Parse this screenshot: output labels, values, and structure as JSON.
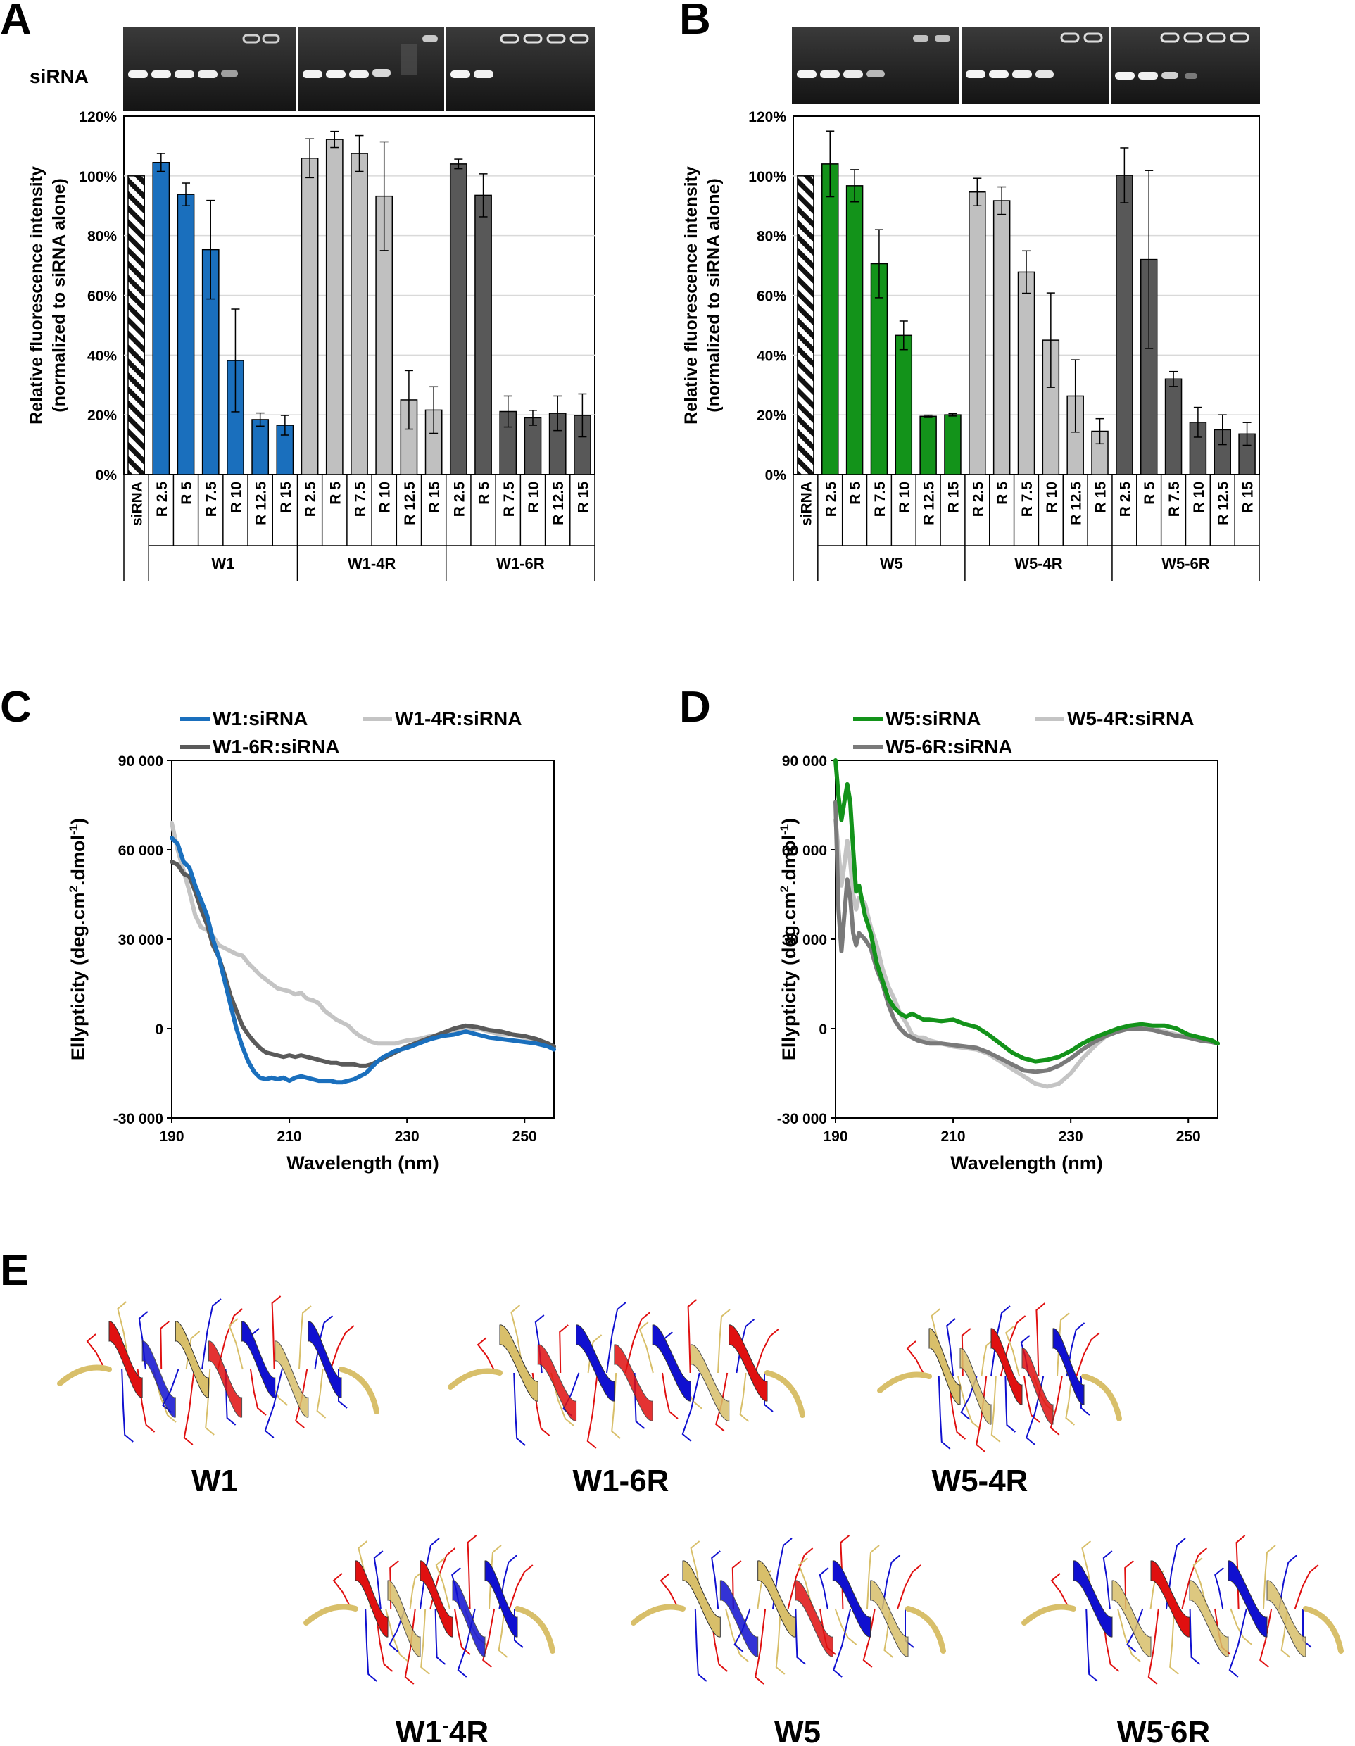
{
  "panels": {
    "A": {
      "letter": "A"
    },
    "B": {
      "letter": "B"
    },
    "C": {
      "letter": "C"
    },
    "D": {
      "letter": "D"
    },
    "E": {
      "letter": "E"
    }
  },
  "colors": {
    "blue": "#1a6fbd",
    "green": "#13931a",
    "light_grey": "#bdbdbd",
    "dark_grey": "#565656",
    "mid_grey": "#767676",
    "helix_red": "#e01010",
    "helix_blue": "#1010d0",
    "helix_yellow": "#d8bf6a"
  },
  "gel": {
    "label": "siRNA"
  },
  "chart_data": [
    {
      "panel": "A",
      "type": "bar",
      "title": "",
      "ylabel_lines": [
        "Relative fluorescence intensity",
        "(normalized to siRNA alone)"
      ],
      "xlabel": "",
      "ylim": [
        0,
        120
      ],
      "yticks": [
        0,
        20,
        40,
        60,
        80,
        100,
        120
      ],
      "ytick_labels": [
        "0%",
        "20%",
        "40%",
        "60%",
        "80%",
        "100%",
        "120%"
      ],
      "control": {
        "label": "siRNA",
        "value": 100,
        "error": 0
      },
      "categories": [
        "R 2.5",
        "R 5",
        "R 7.5",
        "R 10",
        "R 12.5",
        "R 15"
      ],
      "series": [
        {
          "name": "W1",
          "color": "#1a6fbd",
          "values": [
            104.5,
            93.8,
            75.3,
            38.2,
            18.4,
            16.5
          ],
          "errors": [
            3.0,
            3.8,
            16.5,
            17.2,
            2.2,
            3.3
          ]
        },
        {
          "name": "W1-4R",
          "color": "#c0c0c0",
          "values": [
            105.9,
            112.2,
            107.5,
            93.2,
            25.0,
            21.6
          ],
          "errors": [
            6.5,
            2.7,
            6.0,
            18.2,
            9.8,
            7.8
          ]
        },
        {
          "name": "W1-6R",
          "color": "#585858",
          "values": [
            104.0,
            93.5,
            21.1,
            19.0,
            20.5,
            19.8
          ],
          "errors": [
            1.6,
            7.2,
            5.2,
            2.5,
            5.8,
            7.2
          ]
        }
      ]
    },
    {
      "panel": "B",
      "type": "bar",
      "title": "",
      "ylabel_lines": [
        "Relative fluorescence intensity",
        "(normalized to siRNA alone)"
      ],
      "xlabel": "",
      "ylim": [
        0,
        120
      ],
      "yticks": [
        0,
        20,
        40,
        60,
        80,
        100,
        120
      ],
      "ytick_labels": [
        "0%",
        "20%",
        "40%",
        "60%",
        "80%",
        "100%",
        "120%"
      ],
      "control": {
        "label": "siRNA",
        "value": 100,
        "error": 0
      },
      "categories": [
        "R 2.5",
        "R 5",
        "R 7.5",
        "R 10",
        "R 12.5",
        "R 15"
      ],
      "series": [
        {
          "name": "W5",
          "color": "#13931a",
          "values": [
            104.0,
            96.7,
            70.6,
            46.6,
            19.5,
            20.0
          ],
          "errors": [
            11.0,
            5.4,
            11.4,
            4.8,
            0.4,
            0.4
          ]
        },
        {
          "name": "W5-4R",
          "color": "#c0c0c0",
          "values": [
            94.6,
            91.7,
            67.8,
            45.0,
            26.3,
            14.5
          ],
          "errors": [
            4.6,
            4.6,
            7.1,
            15.8,
            12.1,
            4.2
          ]
        },
        {
          "name": "W5-6R",
          "color": "#585858",
          "values": [
            100.2,
            72.0,
            32.0,
            17.5,
            15.0,
            13.6
          ],
          "errors": [
            9.2,
            29.8,
            2.5,
            5.0,
            5.0,
            3.8
          ]
        }
      ]
    },
    {
      "panel": "C",
      "type": "line",
      "title": "",
      "xlabel": "Wavelength (nm)",
      "ylabel": "Ellypticity (deg.cm",
      "ylabel_sup1": "2",
      "ylabel_mid": ".dmol",
      "ylabel_sup2": "-1",
      "ylabel_end": ")",
      "xlim": [
        190,
        255
      ],
      "ylim": [
        -30000,
        90000
      ],
      "xticks": [
        190,
        210,
        230,
        250
      ],
      "xtick_labels": [
        "190",
        "210",
        "230",
        "250"
      ],
      "yticks": [
        -30000,
        0,
        30000,
        60000,
        90000
      ],
      "ytick_labels": [
        "-30 000",
        "0",
        "30 000",
        "60 000",
        "90 000"
      ],
      "series": [
        {
          "name": "W1-4R:siRNA",
          "color": "#c4c4c4",
          "x": [
            190,
            191,
            192,
            193,
            194,
            195,
            196,
            197,
            198,
            199,
            200,
            201,
            202,
            203,
            204,
            205,
            206,
            207,
            208,
            209,
            210,
            211,
            212,
            213,
            214,
            215,
            216,
            217,
            218,
            219,
            220,
            221,
            222,
            223,
            224,
            225,
            226,
            227,
            228,
            229,
            230,
            232,
            234,
            236,
            238,
            240,
            242,
            244,
            246,
            248,
            250,
            252,
            254,
            255
          ],
          "y": [
            69000,
            60000,
            53000,
            46000,
            38000,
            34000,
            33000,
            31000,
            28000,
            27000,
            26000,
            25000,
            24500,
            22000,
            20000,
            18000,
            16500,
            15000,
            13500,
            13000,
            12500,
            11500,
            12000,
            10000,
            9500,
            8500,
            6000,
            4500,
            3000,
            2000,
            1000,
            -1000,
            -2500,
            -3500,
            -4500,
            -5000,
            -5000,
            -5000,
            -5000,
            -4500,
            -4000,
            -3500,
            -2500,
            -2000,
            -1000,
            0,
            0,
            -1000,
            -2000,
            -2000,
            -3000,
            -4000,
            -5000,
            -6000
          ]
        },
        {
          "name": "W1-6R:siRNA",
          "color": "#5a5a5a",
          "x": [
            190,
            191,
            192,
            193,
            194,
            195,
            196,
            197,
            198,
            199,
            200,
            201,
            202,
            203,
            204,
            205,
            206,
            207,
            208,
            209,
            210,
            211,
            212,
            213,
            214,
            215,
            216,
            217,
            218,
            219,
            220,
            221,
            222,
            223,
            224,
            225,
            226,
            227,
            228,
            229,
            230,
            232,
            234,
            236,
            238,
            240,
            242,
            244,
            246,
            248,
            250,
            252,
            254,
            255
          ],
          "y": [
            56000,
            55000,
            52000,
            51000,
            46000,
            40000,
            35000,
            28000,
            24000,
            18000,
            11000,
            6000,
            1000,
            -2000,
            -4500,
            -6500,
            -8000,
            -8500,
            -9000,
            -9500,
            -9000,
            -9500,
            -9000,
            -9500,
            -10000,
            -10500,
            -11000,
            -11500,
            -11500,
            -12000,
            -12000,
            -12000,
            -12500,
            -12500,
            -12000,
            -11000,
            -10000,
            -9000,
            -8000,
            -7000,
            -6000,
            -4500,
            -3000,
            -1500,
            0,
            1000,
            500,
            -500,
            -1000,
            -2000,
            -2500,
            -3500,
            -5000,
            -6000
          ]
        },
        {
          "name": "W1:siRNA",
          "color": "#1a6fbd",
          "x": [
            190,
            191,
            192,
            193,
            194,
            195,
            196,
            197,
            198,
            199,
            200,
            201,
            202,
            203,
            204,
            205,
            206,
            207,
            208,
            209,
            210,
            211,
            212,
            213,
            214,
            215,
            216,
            217,
            218,
            219,
            220,
            221,
            222,
            223,
            224,
            225,
            226,
            227,
            228,
            229,
            230,
            232,
            234,
            236,
            238,
            240,
            242,
            244,
            246,
            248,
            250,
            252,
            254,
            255
          ],
          "y": [
            64000,
            62000,
            56000,
            54000,
            48000,
            43000,
            38000,
            30000,
            24000,
            16000,
            8000,
            0,
            -6000,
            -11000,
            -14500,
            -16500,
            -17000,
            -16500,
            -17000,
            -16500,
            -17500,
            -16500,
            -16000,
            -16500,
            -17000,
            -17500,
            -17500,
            -17500,
            -18000,
            -18000,
            -17500,
            -17000,
            -16000,
            -15000,
            -13000,
            -11000,
            -9500,
            -8500,
            -7500,
            -7000,
            -6500,
            -5000,
            -3500,
            -2500,
            -2000,
            -1000,
            -2000,
            -3000,
            -3500,
            -4000,
            -4500,
            -5000,
            -6000,
            -7000
          ]
        }
      ],
      "legend": [
        "W1:siRNA",
        "W1-4R:siRNA",
        "W1-6R:siRNA"
      ]
    },
    {
      "panel": "D",
      "type": "line",
      "title": "",
      "xlabel": "Wavelength (nm)",
      "ylabel": "Ellypticity (deg.cm",
      "ylabel_sup1": "2",
      "ylabel_mid": ".dmol",
      "ylabel_sup2": "-1",
      "ylabel_end": ")",
      "xlim": [
        190,
        255
      ],
      "ylim": [
        -30000,
        90000
      ],
      "xticks": [
        190,
        210,
        230,
        250
      ],
      "xtick_labels": [
        "190",
        "210",
        "230",
        "250"
      ],
      "yticks": [
        -30000,
        0,
        30000,
        60000,
        90000
      ],
      "ytick_labels": [
        "-30 000",
        "0",
        "30 000",
        "60 000",
        "90 000"
      ],
      "series": [
        {
          "name": "W5-4R:siRNA",
          "color": "#c4c4c4",
          "x": [
            190,
            190.5,
            191,
            191.5,
            192,
            192.5,
            193,
            193.5,
            194,
            195,
            196,
            197,
            198,
            199,
            200,
            201,
            202,
            203,
            204,
            205,
            206,
            208,
            210,
            212,
            214,
            216,
            218,
            220,
            222,
            224,
            226,
            228,
            230,
            232,
            234,
            236,
            238,
            240,
            242,
            244,
            246,
            248,
            250,
            252,
            254,
            255
          ],
          "y": [
            70000,
            60000,
            48000,
            55000,
            63000,
            56000,
            45000,
            40000,
            44000,
            42000,
            34000,
            28000,
            20000,
            14000,
            10000,
            5000,
            2000,
            -2000,
            -3000,
            -3000,
            -4000,
            -5000,
            -6000,
            -6500,
            -7000,
            -8500,
            -11000,
            -13500,
            -16000,
            -18500,
            -19500,
            -18500,
            -15000,
            -10000,
            -6000,
            -2500,
            -500,
            0,
            500,
            0,
            -1000,
            -2000,
            -3000,
            -3500,
            -4500,
            -5000
          ]
        },
        {
          "name": "W5-6R:siRNA",
          "color": "#7a7a7a",
          "x": [
            190,
            190.5,
            191,
            191.5,
            192,
            192.5,
            193,
            193.5,
            194,
            195,
            196,
            197,
            198,
            199,
            200,
            201,
            202,
            203,
            204,
            205,
            206,
            208,
            210,
            212,
            214,
            216,
            218,
            220,
            222,
            224,
            226,
            228,
            230,
            232,
            234,
            236,
            238,
            240,
            242,
            244,
            246,
            248,
            250,
            252,
            254,
            255
          ],
          "y": [
            76000,
            40000,
            26000,
            38000,
            50000,
            44000,
            32000,
            28000,
            32000,
            30000,
            27000,
            20000,
            15000,
            8000,
            3000,
            0,
            -2000,
            -3000,
            -4000,
            -4500,
            -5000,
            -5000,
            -5500,
            -6000,
            -6500,
            -8000,
            -10000,
            -12000,
            -14000,
            -14500,
            -14000,
            -12500,
            -10000,
            -7000,
            -4500,
            -2500,
            -1000,
            0,
            0,
            -500,
            -1500,
            -2500,
            -3000,
            -4000,
            -4500,
            -5000
          ]
        },
        {
          "name": "W5:siRNA",
          "color": "#13931a",
          "x": [
            190,
            190.5,
            191,
            191.5,
            192,
            192.5,
            193,
            193.5,
            194,
            195,
            196,
            197,
            198,
            199,
            200,
            201,
            202,
            203,
            204,
            205,
            206,
            208,
            210,
            212,
            214,
            216,
            218,
            220,
            222,
            224,
            226,
            228,
            230,
            232,
            234,
            236,
            238,
            240,
            242,
            244,
            246,
            248,
            250,
            252,
            254,
            255
          ],
          "y": [
            90000,
            78000,
            70000,
            76000,
            82000,
            76000,
            60000,
            46000,
            48000,
            38000,
            32000,
            22000,
            16000,
            10000,
            7000,
            5000,
            4000,
            5000,
            4000,
            3000,
            3000,
            2500,
            3000,
            1500,
            500,
            -2000,
            -5000,
            -8000,
            -10000,
            -11000,
            -10500,
            -9500,
            -7500,
            -5000,
            -3000,
            -1500,
            0,
            1000,
            1500,
            1000,
            1000,
            0,
            -2000,
            -3000,
            -4000,
            -5000
          ]
        }
      ],
      "legend": [
        "W5:siRNA",
        "W5-4R:siRNA",
        "W5-6R:siRNA"
      ]
    }
  ],
  "helices": [
    {
      "name": "W1"
    },
    {
      "name": "W1-6R"
    },
    {
      "name": "W5-4R"
    },
    {
      "name_a": "W1",
      "name_dash": "-",
      "name_b": "4R"
    },
    {
      "name": "W5"
    },
    {
      "name_a": "W5",
      "name_dash": "-",
      "name_b": "6R"
    }
  ]
}
